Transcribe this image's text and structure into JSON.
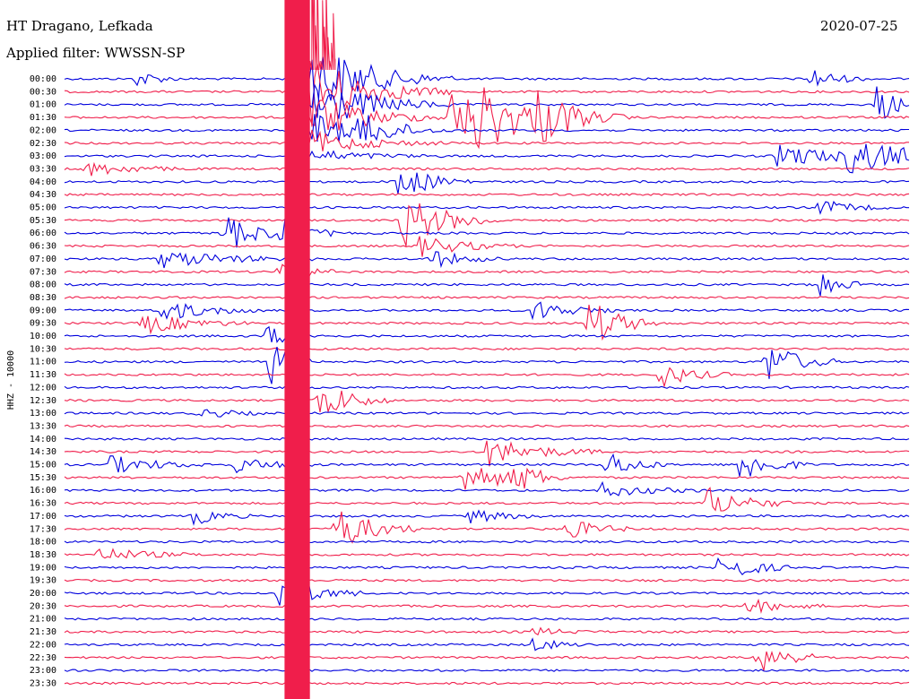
{
  "header": {
    "station": "HT Dragano, Lefkada",
    "filter": "Applied filter: WWSSN-SP",
    "date": "2020-07-25"
  },
  "colors": {
    "trace_a": "#0000dd",
    "trace_b": "#f01e4b",
    "text": "#000000"
  },
  "chart_data": {
    "type": "line",
    "title": "HT Dragano, Lefkada",
    "subtitle": "Applied filter: WWSSN-SP",
    "date": "2020-07-25",
    "ylabel": "HHZ - 10000",
    "xlabel": "",
    "tick_labels": [
      "00:00",
      "00:30",
      "01:00",
      "01:30",
      "02:00",
      "02:30",
      "03:00",
      "03:30",
      "04:00",
      "04:30",
      "05:00",
      "05:30",
      "06:00",
      "06:30",
      "07:00",
      "07:30",
      "08:00",
      "08:30",
      "09:00",
      "09:30",
      "10:00",
      "10:30",
      "11:00",
      "11:30",
      "12:00",
      "12:30",
      "13:00",
      "13:30",
      "14:00",
      "14:30",
      "15:00",
      "15:30",
      "16:00",
      "16:30",
      "17:00",
      "17:30",
      "18:00",
      "18:30",
      "19:00",
      "19:30",
      "20:00",
      "20:30",
      "21:00",
      "21:30",
      "22:00",
      "22:30",
      "23:00",
      "23:30"
    ],
    "x_minutes_per_line": 30,
    "series_colors_alternating": [
      "#0000dd",
      "#f01e4b"
    ],
    "saturated_band": {
      "x_minute_start": 7.8,
      "x_minute_end": 8.7,
      "line_start": 0,
      "line_end": 47
    },
    "events": [
      {
        "line": 0,
        "t": 2.6,
        "amp": 10,
        "dur": 0.6
      },
      {
        "line": 0,
        "t": 26.4,
        "amp": 14,
        "dur": 0.8
      },
      {
        "line": 2,
        "t": 28.8,
        "amp": 22,
        "dur": 0.7
      },
      {
        "line": 3,
        "t": 13.7,
        "amp": 32,
        "dur": 1.4
      },
      {
        "line": 3,
        "t": 14.6,
        "amp": 30,
        "dur": 1.6
      },
      {
        "line": 3,
        "t": 16.8,
        "amp": 26,
        "dur": 1.3
      },
      {
        "line": 4,
        "t": 10.5,
        "amp": 14,
        "dur": 1.0
      },
      {
        "line": 6,
        "t": 25.3,
        "amp": 14,
        "dur": 1.8
      },
      {
        "line": 6,
        "t": 27.8,
        "amp": 18,
        "dur": 2.2
      },
      {
        "line": 7,
        "t": 0.8,
        "amp": 8,
        "dur": 1.5
      },
      {
        "line": 8,
        "t": 11.7,
        "amp": 22,
        "dur": 1.1
      },
      {
        "line": 10,
        "t": 26.7,
        "amp": 9,
        "dur": 1.0
      },
      {
        "line": 11,
        "t": 12.0,
        "amp": 30,
        "dur": 1.4
      },
      {
        "line": 12,
        "t": 5.6,
        "amp": 26,
        "dur": 1.0
      },
      {
        "line": 12,
        "t": 7.6,
        "amp": 22,
        "dur": 0.8
      },
      {
        "line": 13,
        "t": 12.6,
        "amp": 12,
        "dur": 1.4
      },
      {
        "line": 14,
        "t": 3.4,
        "amp": 10,
        "dur": 2.2
      },
      {
        "line": 14,
        "t": 13.0,
        "amp": 10,
        "dur": 1.0
      },
      {
        "line": 15,
        "t": 7.6,
        "amp": 14,
        "dur": 0.8
      },
      {
        "line": 16,
        "t": 26.8,
        "amp": 18,
        "dur": 0.6
      },
      {
        "line": 18,
        "t": 3.4,
        "amp": 12,
        "dur": 1.5
      },
      {
        "line": 18,
        "t": 16.6,
        "amp": 12,
        "dur": 1.2
      },
      {
        "line": 19,
        "t": 18.6,
        "amp": 28,
        "dur": 1.0
      },
      {
        "line": 19,
        "t": 2.8,
        "amp": 12,
        "dur": 1.5
      },
      {
        "line": 20,
        "t": 7.2,
        "amp": 12,
        "dur": 0.8
      },
      {
        "line": 22,
        "t": 7.3,
        "amp": 26,
        "dur": 0.6
      },
      {
        "line": 22,
        "t": 24.9,
        "amp": 24,
        "dur": 1.0
      },
      {
        "line": 23,
        "t": 21.1,
        "amp": 14,
        "dur": 1.0
      },
      {
        "line": 25,
        "t": 9.0,
        "amp": 24,
        "dur": 1.0
      },
      {
        "line": 26,
        "t": 4.8,
        "amp": 6,
        "dur": 1.0
      },
      {
        "line": 29,
        "t": 15.0,
        "amp": 16,
        "dur": 1.6
      },
      {
        "line": 30,
        "t": 1.6,
        "amp": 10,
        "dur": 1.5
      },
      {
        "line": 30,
        "t": 6.1,
        "amp": 8,
        "dur": 1.2
      },
      {
        "line": 30,
        "t": 19.2,
        "amp": 16,
        "dur": 0.9
      },
      {
        "line": 30,
        "t": 23.9,
        "amp": 22,
        "dur": 1.0
      },
      {
        "line": 31,
        "t": 14.1,
        "amp": 20,
        "dur": 1.3
      },
      {
        "line": 31,
        "t": 16.0,
        "amp": 14,
        "dur": 0.8
      },
      {
        "line": 32,
        "t": 19.0,
        "amp": 8,
        "dur": 1.5
      },
      {
        "line": 33,
        "t": 22.8,
        "amp": 18,
        "dur": 1.2
      },
      {
        "line": 34,
        "t": 4.6,
        "amp": 10,
        "dur": 0.8
      },
      {
        "line": 34,
        "t": 14.4,
        "amp": 8,
        "dur": 1.0
      },
      {
        "line": 35,
        "t": 9.6,
        "amp": 26,
        "dur": 1.2
      },
      {
        "line": 35,
        "t": 17.8,
        "amp": 12,
        "dur": 1.0
      },
      {
        "line": 37,
        "t": 1.2,
        "amp": 8,
        "dur": 1.5
      },
      {
        "line": 38,
        "t": 23.2,
        "amp": 18,
        "dur": 1.0
      },
      {
        "line": 40,
        "t": 7.6,
        "amp": 18,
        "dur": 1.2
      },
      {
        "line": 41,
        "t": 24.2,
        "amp": 8,
        "dur": 1.2
      },
      {
        "line": 43,
        "t": 16.5,
        "amp": 5,
        "dur": 1.0
      },
      {
        "line": 44,
        "t": 16.6,
        "amp": 8,
        "dur": 0.8
      },
      {
        "line": 45,
        "t": 24.6,
        "amp": 20,
        "dur": 1.0
      }
    ]
  }
}
